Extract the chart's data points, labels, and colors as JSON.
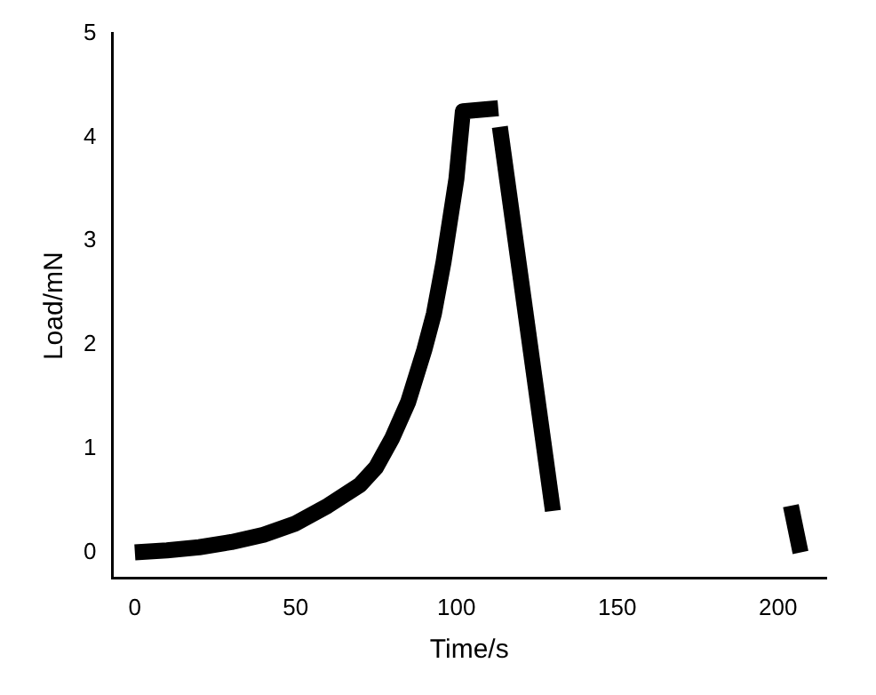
{
  "chart_data": {
    "type": "line",
    "xlabel": "Time/s",
    "ylabel": "Load/mN",
    "series": [
      {
        "color": "#000000",
        "x": [
          0,
          10,
          20,
          30,
          40,
          50,
          60,
          70,
          75,
          80,
          85,
          90,
          93,
          96,
          98,
          100,
          102,
          113
        ],
        "values": [
          0,
          0.02,
          0.05,
          0.1,
          0.17,
          0.28,
          0.45,
          0.65,
          0.82,
          1.1,
          1.45,
          1.95,
          2.3,
          2.8,
          3.2,
          3.6,
          4.25,
          4.28
        ]
      },
      {
        "color": "#000000",
        "x": [
          113.5,
          130
        ],
        "values": [
          4.1,
          0.4
        ]
      },
      {
        "color": "#000000",
        "x": [
          204,
          207
        ],
        "values": [
          0.45,
          0
        ]
      }
    ],
    "xlim": [
      -7,
      215
    ],
    "xticks": [
      0,
      50,
      100,
      150,
      200
    ],
    "ylim": [
      -0.25,
      5
    ],
    "yticks": [
      0,
      1,
      2,
      3,
      4,
      5
    ],
    "grid": false,
    "legend": false,
    "marker": "none",
    "line_style": "solid"
  }
}
